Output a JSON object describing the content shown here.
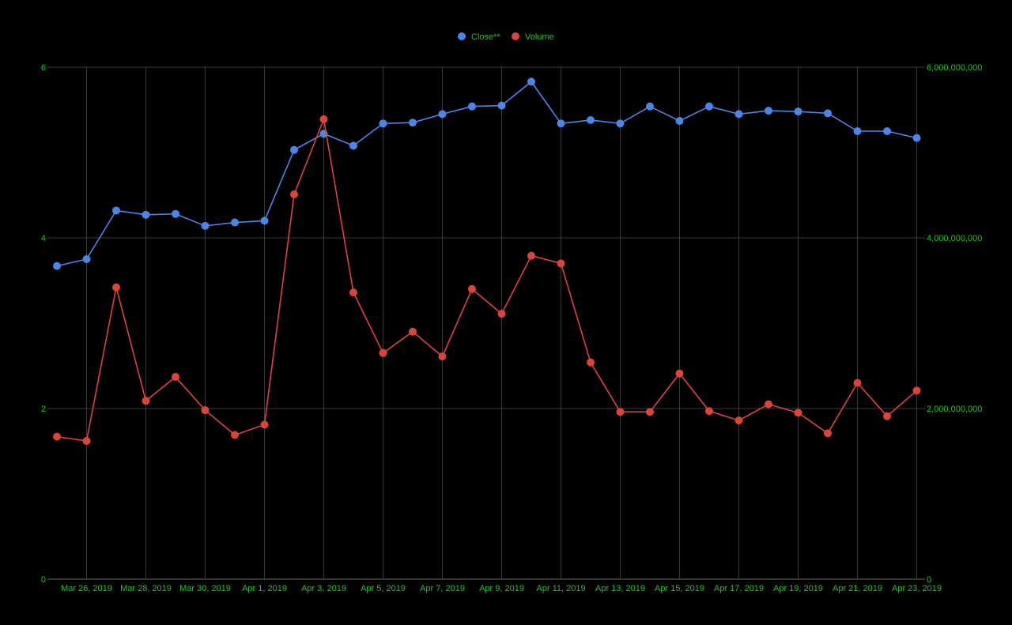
{
  "chart_data": {
    "type": "line",
    "title": "",
    "xlabel": "",
    "ylabel": "",
    "legend": {
      "placement": "top-center"
    },
    "grid": true,
    "colors": {
      "background": "#000000",
      "text": "#22c422",
      "grid": "#3a3a3a",
      "Close": "#4a86e8",
      "Volume": "#dc4437"
    },
    "x": [
      "Mar 25, 2019",
      "Mar 26, 2019",
      "Mar 27, 2019",
      "Mar 28, 2019",
      "Mar 29, 2019",
      "Mar 30, 2019",
      "Mar 31, 2019",
      "Apr 1, 2019",
      "Apr 2, 2019",
      "Apr 3, 2019",
      "Apr 4, 2019",
      "Apr 5, 2019",
      "Apr 6, 2019",
      "Apr 7, 2019",
      "Apr 8, 2019",
      "Apr 9, 2019",
      "Apr 10, 2019",
      "Apr 11, 2019",
      "Apr 12, 2019",
      "Apr 13, 2019",
      "Apr 14, 2019",
      "Apr 15, 2019",
      "Apr 16, 2019",
      "Apr 17, 2019",
      "Apr 18, 2019",
      "Apr 19, 2019",
      "Apr 20, 2019",
      "Apr 21, 2019",
      "Apr 22, 2019",
      "Apr 23, 2019"
    ],
    "x_tick_labels": [
      "Mar 26, 2019",
      "Mar 28, 2019",
      "Mar 30, 2019",
      "Apr 1, 2019",
      "Apr 3, 2019",
      "Apr 5, 2019",
      "Apr 7, 2019",
      "Apr 9, 2019",
      "Apr 11, 2019",
      "Apr 13, 2019",
      "Apr 15, 2019",
      "Apr 17, 2019",
      "Apr 19, 2019",
      "Apr 21, 2019",
      "Apr 23, 2019"
    ],
    "y_left": {
      "range": [
        0,
        6
      ],
      "ticks": [
        "0",
        "2",
        "4",
        "6"
      ]
    },
    "y_right": {
      "range": [
        0,
        6000000000
      ],
      "ticks": [
        "0",
        "2,000,000,000",
        "4,000,000,000",
        "6,000,000,000"
      ]
    },
    "series": [
      {
        "name": "Close**",
        "axis": "left",
        "values": [
          3.67,
          3.75,
          4.32,
          4.27,
          4.28,
          4.14,
          4.18,
          4.2,
          5.03,
          5.22,
          5.08,
          5.34,
          5.35,
          5.45,
          5.54,
          5.55,
          5.83,
          5.34,
          5.38,
          5.34,
          5.54,
          5.37,
          5.54,
          5.45,
          5.49,
          5.48,
          5.46,
          5.25,
          5.25,
          5.17
        ]
      },
      {
        "name": "Volume",
        "axis": "right",
        "values": [
          1670000000,
          1620000000,
          3420000000,
          2090000000,
          2370000000,
          1980000000,
          1690000000,
          1810000000,
          4510000000,
          5390000000,
          3360000000,
          2650000000,
          2900000000,
          2610000000,
          3400000000,
          3110000000,
          3790000000,
          3700000000,
          2540000000,
          1960000000,
          1960000000,
          2410000000,
          1970000000,
          1860000000,
          2050000000,
          1950000000,
          1710000000,
          2300000000,
          1910000000,
          2210000000
        ]
      }
    ]
  }
}
